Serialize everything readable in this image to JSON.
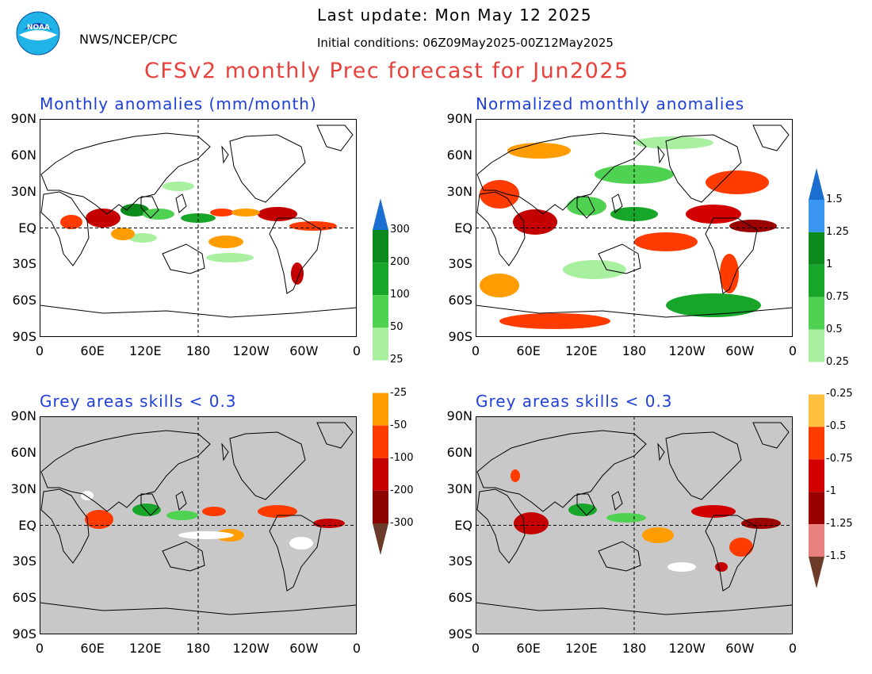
{
  "header": {
    "agency": "NWS/NCEP/CPC",
    "last_update": "Last update: Mon May 12 2025",
    "initial_conditions": "Initial conditions: 06Z09May2025-00Z12May2025",
    "title": "CFSv2 monthly Prec forecast for Jun2025",
    "logo_text": "NOAA"
  },
  "axes": {
    "lat_labels": [
      "90N",
      "60N",
      "30N",
      "EQ",
      "30S",
      "60S",
      "90S"
    ],
    "lon_labels": [
      "0",
      "60E",
      "120E",
      "180",
      "120W",
      "60W",
      "0"
    ]
  },
  "panels": [
    {
      "id": "anomaly",
      "title": "Monthly anomalies (mm/month)",
      "background": "#ffffff"
    },
    {
      "id": "normalized",
      "title": "Normalized monthly anomalies",
      "background": "#ffffff"
    },
    {
      "id": "anomaly-skill",
      "title": "Grey areas skills < 0.3",
      "background": "#c8c8c8"
    },
    {
      "id": "normalized-skill",
      "title": "Grey areas skills < 0.3",
      "background": "#c8c8c8"
    }
  ],
  "colorbars": [
    {
      "id": "mm",
      "labels": [
        "300",
        "200",
        "100",
        "50",
        "25",
        "-25",
        "-50",
        "-100",
        "-200",
        "-300"
      ],
      "colors": [
        "#1a6fd0",
        "#0c8a1c",
        "#17a52a",
        "#4fd152",
        "#a8f0a0",
        "#ffffff",
        "#ff9d00",
        "#ff3b00",
        "#c40000",
        "#8c0000",
        "#6b3a28"
      ]
    },
    {
      "id": "normalized",
      "labels": [
        "1.5",
        "1.25",
        "1",
        "0.75",
        "0.5",
        "0.25",
        "-0.25",
        "-0.5",
        "-0.75",
        "-1",
        "-1.25",
        "-1.5"
      ],
      "colors": [
        "#1a6fd0",
        "#3a96f2",
        "#0c8a1c",
        "#17a52a",
        "#4fd152",
        "#a8f0a0",
        "#ffffff",
        "#ffc040",
        "#ff3b00",
        "#d20000",
        "#9a0000",
        "#e88080",
        "#6b3a28"
      ]
    }
  ]
}
